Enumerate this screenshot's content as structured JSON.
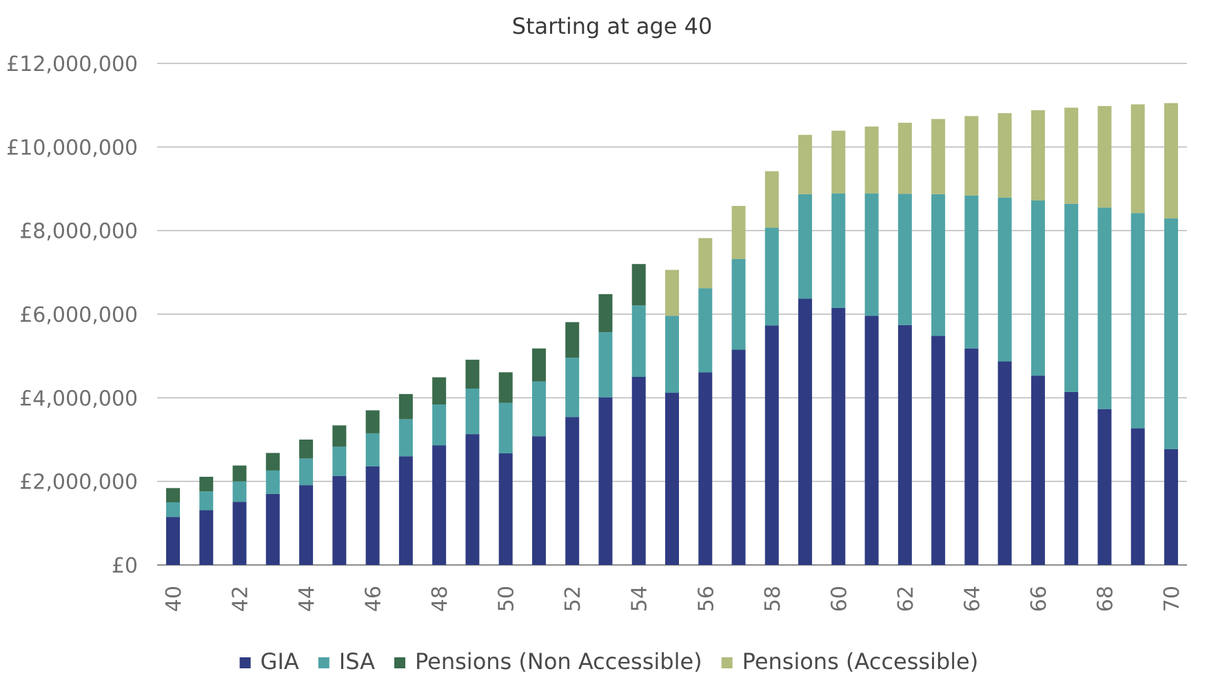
{
  "chart_data": {
    "type": "bar",
    "stacked": true,
    "title": "Starting at age 40",
    "xlabel": "",
    "ylabel": "",
    "ylim": [
      0,
      12000000
    ],
    "y_ticks": [
      "£0",
      "£2,000,000",
      "£4,000,000",
      "£6,000,000",
      "£8,000,000",
      "£10,000,000",
      "£12,000,000"
    ],
    "y_tick_values": [
      0,
      2000000,
      4000000,
      6000000,
      8000000,
      10000000,
      12000000
    ],
    "categories": [
      40,
      41,
      42,
      43,
      44,
      45,
      46,
      47,
      48,
      49,
      50,
      51,
      52,
      53,
      54,
      55,
      56,
      57,
      58,
      59,
      60,
      61,
      62,
      63,
      64,
      65,
      66,
      67,
      68,
      69,
      70
    ],
    "x_tick_labels": [
      "40",
      "42",
      "44",
      "46",
      "48",
      "50",
      "52",
      "54",
      "56",
      "58",
      "60",
      "62",
      "64",
      "66",
      "68",
      "70"
    ],
    "grid": true,
    "legend_position": "bottom",
    "series": [
      {
        "name": "GIA",
        "color": "#2f3c82",
        "values": [
          1150000,
          1310000,
          1510000,
          1700000,
          1910000,
          2130000,
          2360000,
          2600000,
          2860000,
          3130000,
          2670000,
          3080000,
          3540000,
          4010000,
          4500000,
          4120000,
          4610000,
          5150000,
          5730000,
          6370000,
          6150000,
          5960000,
          5740000,
          5480000,
          5180000,
          4870000,
          4530000,
          4140000,
          3730000,
          3270000,
          2770000
        ]
      },
      {
        "name": "ISA",
        "color": "#4fa3a5",
        "values": [
          350000,
          450000,
          490000,
          560000,
          640000,
          700000,
          790000,
          890000,
          980000,
          1090000,
          1210000,
          1310000,
          1420000,
          1560000,
          1710000,
          1840000,
          2010000,
          2170000,
          2340000,
          2500000,
          2740000,
          2930000,
          3140000,
          3390000,
          3660000,
          3920000,
          4190000,
          4500000,
          4820000,
          5150000,
          5520000
        ]
      },
      {
        "name": "Pensions (Non Accessible)",
        "color": "#3a6b4c",
        "values": [
          340000,
          350000,
          380000,
          420000,
          450000,
          510000,
          550000,
          600000,
          650000,
          690000,
          730000,
          790000,
          850000,
          910000,
          990000,
          0,
          0,
          0,
          0,
          0,
          0,
          0,
          0,
          0,
          0,
          0,
          0,
          0,
          0,
          0,
          0
        ]
      },
      {
        "name": "Pensions (Accessible)",
        "color": "#b1bc7d",
        "values": [
          0,
          0,
          0,
          0,
          0,
          0,
          0,
          0,
          0,
          0,
          0,
          0,
          0,
          0,
          0,
          1100000,
          1200000,
          1270000,
          1350000,
          1420000,
          1500000,
          1600000,
          1700000,
          1800000,
          1900000,
          2020000,
          2160000,
          2300000,
          2430000,
          2600000,
          2760000
        ]
      }
    ]
  }
}
